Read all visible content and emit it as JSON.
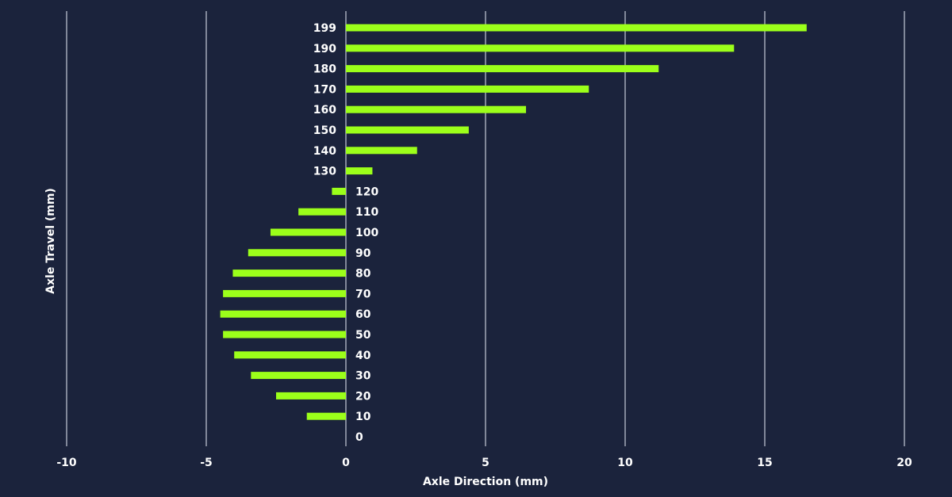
{
  "colors": {
    "background": "#1b233c",
    "bar": "#9cff1a",
    "grid": "#b9bfcc",
    "text": "#ffffff"
  },
  "chart_data": {
    "type": "bar",
    "orientation": "horizontal",
    "title": "",
    "xlabel": "Axle Direction (mm)",
    "ylabel": "Axle Travel (mm)",
    "xlim": [
      -10,
      20
    ],
    "x_ticks": [
      -10,
      -5,
      0,
      5,
      10,
      15,
      20
    ],
    "x_tick_labels": [
      "-10",
      "-5",
      "0",
      "5",
      "10",
      "15",
      "20"
    ],
    "grid": "vertical",
    "legend": "none",
    "categories": [
      "199",
      "190",
      "180",
      "170",
      "160",
      "150",
      "140",
      "130",
      "120",
      "110",
      "100",
      "90",
      "80",
      "70",
      "60",
      "50",
      "40",
      "30",
      "20",
      "10",
      "0"
    ],
    "values": [
      16.5,
      13.9,
      11.2,
      8.7,
      6.45,
      4.4,
      2.55,
      0.95,
      -0.5,
      -1.7,
      -2.7,
      -3.5,
      -4.05,
      -4.4,
      -4.5,
      -4.4,
      -4.0,
      -3.4,
      -2.5,
      -1.4,
      0
    ]
  }
}
